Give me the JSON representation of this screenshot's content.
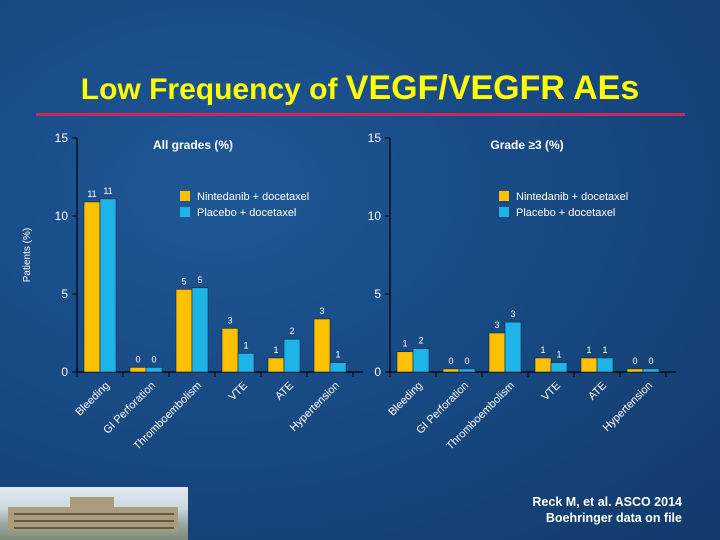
{
  "slide": {
    "title_part1": "Low Frequency of ",
    "title_part2": "VEGF/VEGFR AEs",
    "citation_line1": "Reck M, et al. ASCO 2014",
    "citation_line2": "Boehringer data on file",
    "colors": {
      "title": "#ffff00",
      "rule": "#c8285a"
    }
  },
  "chart_data": [
    {
      "type": "bar",
      "title": "All grades (%)",
      "ylabel": "Patients (%)",
      "xlabel": "",
      "ylim": [
        0,
        15
      ],
      "yticks": [
        0,
        5,
        10,
        15
      ],
      "categories": [
        "Bleeding",
        "GI Perforation",
        "Thromboembolism",
        "VTE",
        "ATE",
        "Hypertension"
      ],
      "series": [
        {
          "name": "Nintedanib + docetaxel",
          "color": "#ffc000",
          "values": [
            10.9,
            0.3,
            5.3,
            2.8,
            0.9,
            3.4
          ],
          "labels": [
            "11",
            "0",
            "5",
            "3",
            "1",
            "3"
          ]
        },
        {
          "name": "Placebo + docetaxel",
          "color": "#1eb4e6",
          "values": [
            11.1,
            0.3,
            5.4,
            1.2,
            2.1,
            0.6
          ],
          "labels": [
            "11",
            "0",
            "5",
            "1",
            "2",
            "1"
          ]
        }
      ],
      "legend": "top-right",
      "grid": false
    },
    {
      "type": "bar",
      "title": "Grade ≥3 (%)",
      "ylabel": "",
      "xlabel": "",
      "ylim": [
        0,
        15
      ],
      "yticks": [
        0,
        5,
        10,
        15
      ],
      "categories": [
        "Bleeding",
        "GI Perforation",
        "Thromboembolism",
        "VTE",
        "ATE",
        "Hypertension"
      ],
      "series": [
        {
          "name": "Nintedanib + docetaxel",
          "color": "#ffc000",
          "values": [
            1.3,
            0.2,
            2.5,
            0.9,
            0.9,
            0.2
          ],
          "labels": [
            "1",
            "0",
            "3",
            "1",
            "1",
            "0"
          ]
        },
        {
          "name": "Placebo + docetaxel",
          "color": "#1eb4e6",
          "values": [
            1.5,
            0.2,
            3.2,
            0.6,
            0.9,
            0.2
          ],
          "labels": [
            "2",
            "0",
            "3",
            "1",
            "1",
            "0"
          ]
        }
      ],
      "legend": "top-right",
      "grid": false
    }
  ]
}
